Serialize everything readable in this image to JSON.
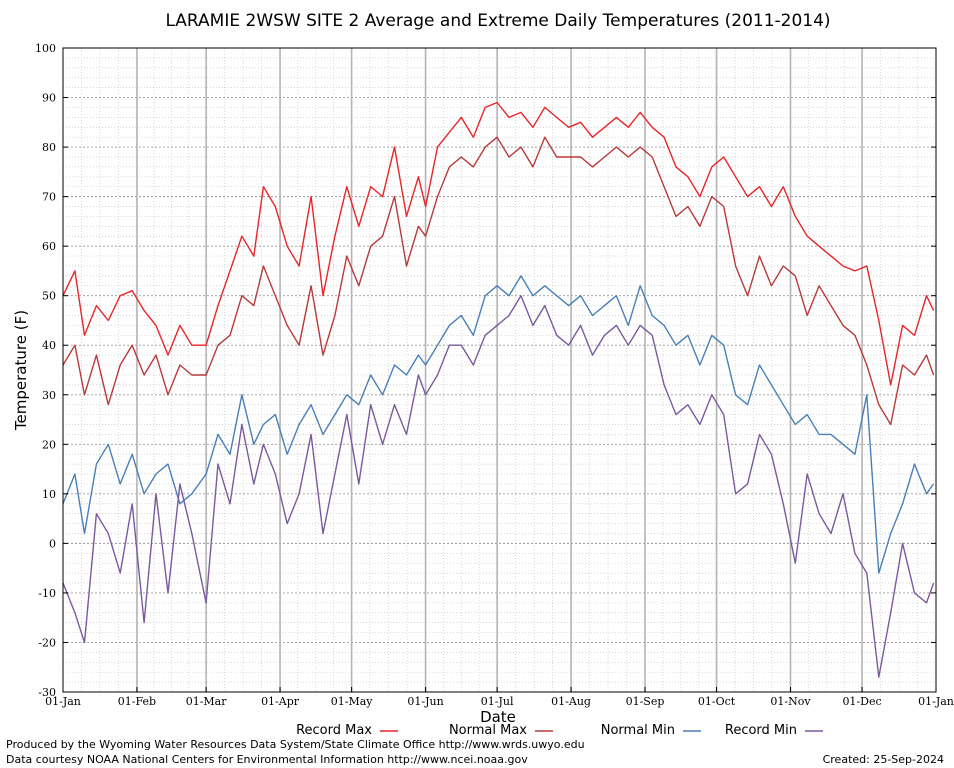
{
  "chart_data": {
    "type": "line",
    "title": "LARAMIE 2WSW SITE 2 Average and Extreme Daily Temperatures (2011-2014)",
    "xlabel": "Date",
    "ylabel": "Temperature (F)",
    "ylim": [
      -30,
      100
    ],
    "yticks": [
      "100",
      "90",
      "80",
      "70",
      "60",
      "50",
      "40",
      "30",
      "20",
      "10",
      "0",
      "-10",
      "-20",
      "-30"
    ],
    "xticks": [
      "01-Jan",
      "01-Feb",
      "01-Mar",
      "01-Apr",
      "01-May",
      "01-Jun",
      "01-Jul",
      "01-Aug",
      "01-Sep",
      "01-Oct",
      "01-Nov",
      "01-Dec",
      "01-Jan"
    ],
    "xlim": [
      "2012-01-01",
      "2013-01-01"
    ],
    "grid": true,
    "legend_position": "bottom",
    "series": [
      {
        "name": "Record Max",
        "color": "#e8252a",
        "dates": [
          "2012-01-01",
          "2012-01-06",
          "2012-01-10",
          "2012-01-15",
          "2012-01-20",
          "2012-01-25",
          "2012-01-30",
          "2012-02-04",
          "2012-02-09",
          "2012-02-14",
          "2012-02-19",
          "2012-02-24",
          "2012-03-01",
          "2012-03-06",
          "2012-03-11",
          "2012-03-16",
          "2012-03-21",
          "2012-03-25",
          "2012-03-30",
          "2012-04-04",
          "2012-04-09",
          "2012-04-14",
          "2012-04-19",
          "2012-04-24",
          "2012-04-29",
          "2012-05-04",
          "2012-05-09",
          "2012-05-14",
          "2012-05-19",
          "2012-05-24",
          "2012-05-29",
          "2012-06-01",
          "2012-06-06",
          "2012-06-11",
          "2012-06-16",
          "2012-06-21",
          "2012-06-26",
          "2012-07-01",
          "2012-07-06",
          "2012-07-11",
          "2012-07-16",
          "2012-07-21",
          "2012-07-26",
          "2012-07-31",
          "2012-08-05",
          "2012-08-10",
          "2012-08-15",
          "2012-08-20",
          "2012-08-25",
          "2012-08-30",
          "2012-09-04",
          "2012-09-09",
          "2012-09-14",
          "2012-09-19",
          "2012-09-24",
          "2012-09-29",
          "2012-10-04",
          "2012-10-09",
          "2012-10-14",
          "2012-10-19",
          "2012-10-24",
          "2012-10-29",
          "2012-11-03",
          "2012-11-08",
          "2012-11-13",
          "2012-11-18",
          "2012-11-23",
          "2012-11-28",
          "2012-12-03",
          "2012-12-08",
          "2012-12-13",
          "2012-12-18",
          "2012-12-23",
          "2012-12-28",
          "2012-12-31"
        ],
        "values": [
          50,
          55,
          42,
          48,
          45,
          50,
          51,
          47,
          44,
          38,
          44,
          40,
          40,
          48,
          55,
          62,
          58,
          72,
          68,
          60,
          56,
          70,
          50,
          62,
          72,
          64,
          72,
          70,
          80,
          66,
          74,
          68,
          80,
          83,
          86,
          82,
          88,
          89,
          86,
          87,
          84,
          88,
          86,
          84,
          85,
          82,
          84,
          86,
          84,
          87,
          84,
          82,
          76,
          74,
          70,
          76,
          78,
          74,
          70,
          72,
          68,
          72,
          66,
          62,
          60,
          58,
          56,
          55,
          56,
          45,
          32,
          44,
          42,
          50,
          47
        ]
      },
      {
        "name": "Normal Max",
        "color": "#b83a3a",
        "dates": [
          "2012-01-01",
          "2012-01-06",
          "2012-01-10",
          "2012-01-15",
          "2012-01-20",
          "2012-01-25",
          "2012-01-30",
          "2012-02-04",
          "2012-02-09",
          "2012-02-14",
          "2012-02-19",
          "2012-02-24",
          "2012-03-01",
          "2012-03-06",
          "2012-03-11",
          "2012-03-16",
          "2012-03-21",
          "2012-03-25",
          "2012-03-30",
          "2012-04-04",
          "2012-04-09",
          "2012-04-14",
          "2012-04-19",
          "2012-04-24",
          "2012-04-29",
          "2012-05-04",
          "2012-05-09",
          "2012-05-14",
          "2012-05-19",
          "2012-05-24",
          "2012-05-29",
          "2012-06-01",
          "2012-06-06",
          "2012-06-11",
          "2012-06-16",
          "2012-06-21",
          "2012-06-26",
          "2012-07-01",
          "2012-07-06",
          "2012-07-11",
          "2012-07-16",
          "2012-07-21",
          "2012-07-26",
          "2012-07-31",
          "2012-08-05",
          "2012-08-10",
          "2012-08-15",
          "2012-08-20",
          "2012-08-25",
          "2012-08-30",
          "2012-09-04",
          "2012-09-09",
          "2012-09-14",
          "2012-09-19",
          "2012-09-24",
          "2012-09-29",
          "2012-10-04",
          "2012-10-09",
          "2012-10-14",
          "2012-10-19",
          "2012-10-24",
          "2012-10-29",
          "2012-11-03",
          "2012-11-08",
          "2012-11-13",
          "2012-11-18",
          "2012-11-23",
          "2012-11-28",
          "2012-12-03",
          "2012-12-08",
          "2012-12-13",
          "2012-12-18",
          "2012-12-23",
          "2012-12-28",
          "2012-12-31"
        ],
        "values": [
          36,
          40,
          30,
          38,
          28,
          36,
          40,
          34,
          38,
          30,
          36,
          34,
          34,
          40,
          42,
          50,
          48,
          56,
          50,
          44,
          40,
          52,
          38,
          46,
          58,
          52,
          60,
          62,
          70,
          56,
          64,
          62,
          70,
          76,
          78,
          76,
          80,
          82,
          78,
          80,
          76,
          82,
          78,
          78,
          78,
          76,
          78,
          80,
          78,
          80,
          78,
          72,
          66,
          68,
          64,
          70,
          68,
          56,
          50,
          58,
          52,
          56,
          54,
          46,
          52,
          48,
          44,
          42,
          36,
          28,
          24,
          36,
          34,
          38,
          34
        ]
      },
      {
        "name": "Normal Min",
        "color": "#4a7fb8",
        "dates": [
          "2012-01-01",
          "2012-01-06",
          "2012-01-10",
          "2012-01-15",
          "2012-01-20",
          "2012-01-25",
          "2012-01-30",
          "2012-02-04",
          "2012-02-09",
          "2012-02-14",
          "2012-02-19",
          "2012-02-24",
          "2012-03-01",
          "2012-03-06",
          "2012-03-11",
          "2012-03-16",
          "2012-03-21",
          "2012-03-25",
          "2012-03-30",
          "2012-04-04",
          "2012-04-09",
          "2012-04-14",
          "2012-04-19",
          "2012-04-24",
          "2012-04-29",
          "2012-05-04",
          "2012-05-09",
          "2012-05-14",
          "2012-05-19",
          "2012-05-24",
          "2012-05-29",
          "2012-06-01",
          "2012-06-06",
          "2012-06-11",
          "2012-06-16",
          "2012-06-21",
          "2012-06-26",
          "2012-07-01",
          "2012-07-06",
          "2012-07-11",
          "2012-07-16",
          "2012-07-21",
          "2012-07-26",
          "2012-07-31",
          "2012-08-05",
          "2012-08-10",
          "2012-08-15",
          "2012-08-20",
          "2012-08-25",
          "2012-08-30",
          "2012-09-04",
          "2012-09-09",
          "2012-09-14",
          "2012-09-19",
          "2012-09-24",
          "2012-09-29",
          "2012-10-04",
          "2012-10-09",
          "2012-10-14",
          "2012-10-19",
          "2012-10-24",
          "2012-10-29",
          "2012-11-03",
          "2012-11-08",
          "2012-11-13",
          "2012-11-18",
          "2012-11-23",
          "2012-11-28",
          "2012-12-03",
          "2012-12-08",
          "2012-12-13",
          "2012-12-18",
          "2012-12-23",
          "2012-12-28",
          "2012-12-31"
        ],
        "values": [
          8,
          14,
          2,
          16,
          20,
          12,
          18,
          10,
          14,
          16,
          8,
          10,
          14,
          22,
          18,
          30,
          20,
          24,
          26,
          18,
          24,
          28,
          22,
          26,
          30,
          28,
          34,
          30,
          36,
          34,
          38,
          36,
          40,
          44,
          46,
          42,
          50,
          52,
          50,
          54,
          50,
          52,
          50,
          48,
          50,
          46,
          48,
          50,
          44,
          52,
          46,
          44,
          40,
          42,
          36,
          42,
          40,
          30,
          28,
          36,
          32,
          28,
          24,
          26,
          22,
          22,
          20,
          18,
          30,
          -6,
          2,
          8,
          16,
          10,
          12
        ]
      },
      {
        "name": "Record Min",
        "color": "#7a5a9e",
        "dates": [
          "2012-01-01",
          "2012-01-06",
          "2012-01-10",
          "2012-01-15",
          "2012-01-20",
          "2012-01-25",
          "2012-01-30",
          "2012-02-04",
          "2012-02-09",
          "2012-02-14",
          "2012-02-19",
          "2012-02-24",
          "2012-03-01",
          "2012-03-06",
          "2012-03-11",
          "2012-03-16",
          "2012-03-21",
          "2012-03-25",
          "2012-03-30",
          "2012-04-04",
          "2012-04-09",
          "2012-04-14",
          "2012-04-19",
          "2012-04-24",
          "2012-04-29",
          "2012-05-04",
          "2012-05-09",
          "2012-05-14",
          "2012-05-19",
          "2012-05-24",
          "2012-05-29",
          "2012-06-01",
          "2012-06-06",
          "2012-06-11",
          "2012-06-16",
          "2012-06-21",
          "2012-06-26",
          "2012-07-01",
          "2012-07-06",
          "2012-07-11",
          "2012-07-16",
          "2012-07-21",
          "2012-07-26",
          "2012-07-31",
          "2012-08-05",
          "2012-08-10",
          "2012-08-15",
          "2012-08-20",
          "2012-08-25",
          "2012-08-30",
          "2012-09-04",
          "2012-09-09",
          "2012-09-14",
          "2012-09-19",
          "2012-09-24",
          "2012-09-29",
          "2012-10-04",
          "2012-10-09",
          "2012-10-14",
          "2012-10-19",
          "2012-10-24",
          "2012-10-29",
          "2012-11-03",
          "2012-11-08",
          "2012-11-13",
          "2012-11-18",
          "2012-11-23",
          "2012-11-28",
          "2012-12-03",
          "2012-12-08",
          "2012-12-13",
          "2012-12-18",
          "2012-12-23",
          "2012-12-28",
          "2012-12-31"
        ],
        "values": [
          -8,
          -14,
          -20,
          6,
          2,
          -6,
          8,
          -16,
          10,
          -10,
          12,
          2,
          -12,
          16,
          8,
          24,
          12,
          20,
          14,
          4,
          10,
          22,
          2,
          14,
          26,
          12,
          28,
          20,
          28,
          22,
          34,
          30,
          34,
          40,
          40,
          36,
          42,
          44,
          46,
          50,
          44,
          48,
          42,
          40,
          44,
          38,
          42,
          44,
          40,
          44,
          42,
          32,
          26,
          28,
          24,
          30,
          26,
          10,
          12,
          22,
          18,
          8,
          -4,
          14,
          6,
          2,
          10,
          -2,
          -6,
          -27,
          -14,
          0,
          -10,
          -12,
          -8
        ]
      }
    ]
  },
  "legend": {
    "record_max": "Record Max",
    "normal_max": "Normal Max",
    "normal_min": "Normal Min",
    "record_min": "Record Min"
  },
  "footer": {
    "produced_by": "Produced by the Wyoming Water Resources Data System/State Climate Office http://www.wrds.uwyo.edu",
    "data_courtesy": "Data courtesy NOAA National Centers for Environmental Information http://www.ncei.noaa.gov",
    "created": "Created:  25-Sep-2024"
  }
}
